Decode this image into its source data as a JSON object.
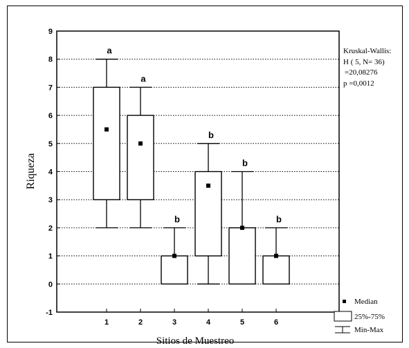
{
  "chart_data": {
    "type": "box",
    "xlabel": "Sitios de Muestreo",
    "ylabel": "Riqueza",
    "ylim": [
      -1,
      9
    ],
    "yticks": [
      -1,
      0,
      1,
      2,
      3,
      4,
      5,
      6,
      7,
      8,
      9
    ],
    "categories": [
      "1",
      "2",
      "3",
      "4",
      "5",
      "6"
    ],
    "grid": "horizontal dotted",
    "boxes": [
      {
        "site": "1",
        "min": 2,
        "q1": 3,
        "median": 5.5,
        "q3": 7,
        "max": 8,
        "group": "a"
      },
      {
        "site": "2",
        "min": 2,
        "q1": 3,
        "median": 5,
        "q3": 6,
        "max": 7,
        "group": "a"
      },
      {
        "site": "3",
        "min": 0,
        "q1": 0,
        "median": 1,
        "q3": 1,
        "max": 2,
        "group": "b"
      },
      {
        "site": "4",
        "min": 0,
        "q1": 1,
        "median": 3.5,
        "q3": 4,
        "max": 5,
        "group": "b"
      },
      {
        "site": "5",
        "min": 0,
        "q1": 0,
        "median": 2,
        "q3": 2,
        "max": 4,
        "group": "b"
      },
      {
        "site": "6",
        "min": 0,
        "q1": 0,
        "median": 1,
        "q3": 1,
        "max": 2,
        "group": "b"
      }
    ],
    "annotation": [
      "Kruskal-Wallis:",
      "H ( 5, N= 36)",
      "=20,08276",
      "p =0,0012"
    ],
    "legend": {
      "placement": "bottom-right",
      "median": "Median",
      "box": "25%-75%",
      "whisker": "Min-Max"
    }
  }
}
